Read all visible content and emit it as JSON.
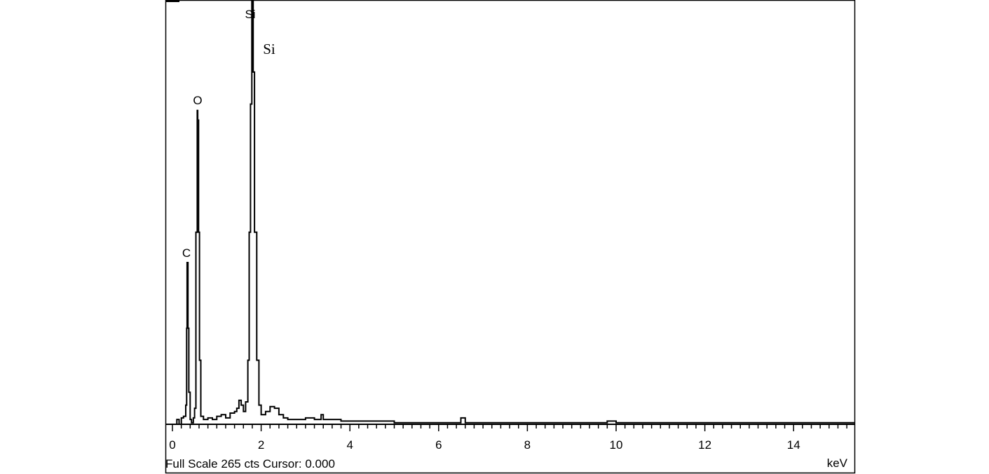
{
  "chart_data": {
    "type": "line",
    "xlabel": "keV",
    "xlim": [
      0,
      15.37
    ],
    "ylim": [
      0,
      265
    ],
    "x_ticks": [
      "0",
      "2",
      "4",
      "6",
      "8",
      "10",
      "12",
      "14"
    ],
    "grid": false,
    "status_text": "Full Scale 265 cts Cursor: 0.000",
    "series": [
      {
        "x": [
          0.05,
          0.1,
          0.15,
          0.2,
          0.25,
          0.3,
          0.32,
          0.33,
          0.35,
          0.37,
          0.4,
          0.43,
          0.47,
          0.5,
          0.53,
          0.56,
          0.57,
          0.59,
          0.61,
          0.64,
          0.7,
          0.8,
          0.9,
          1.0,
          1.1,
          1.2,
          1.3,
          1.4,
          1.45,
          1.5,
          1.55,
          1.6,
          1.65,
          1.7,
          1.73,
          1.76,
          1.79,
          1.8,
          1.82,
          1.85,
          1.9,
          1.95,
          2.0,
          2.1,
          2.2,
          2.3,
          2.4,
          2.5,
          2.6,
          2.8,
          3.0,
          3.2,
          3.35,
          3.4,
          3.6,
          3.8,
          4.0,
          4.5,
          5.0,
          5.5,
          6.0,
          6.3,
          6.5,
          6.6,
          7.0,
          7.5,
          8.0,
          8.5,
          9.0,
          9.5,
          9.8,
          10.0,
          10.5,
          11.0,
          11.5,
          12.0,
          12.5,
          13.0,
          13.5,
          14.0,
          14.5,
          15.0,
          15.37
        ],
        "y": [
          0,
          3,
          0,
          4,
          5,
          12,
          60,
          101,
          60,
          20,
          3,
          1,
          4,
          10,
          120,
          196,
          190,
          120,
          40,
          5,
          3,
          4,
          3,
          5,
          6,
          4,
          7,
          8,
          10,
          15,
          12,
          8,
          14,
          40,
          120,
          200,
          265,
          265,
          220,
          120,
          40,
          12,
          6,
          8,
          11,
          10,
          6,
          4,
          3,
          3,
          4,
          3,
          6,
          3,
          3,
          2,
          2,
          2,
          1,
          1,
          1,
          1,
          4,
          1,
          1,
          1,
          1,
          1,
          1,
          1,
          2,
          1,
          1,
          1,
          1,
          1,
          1,
          1,
          1,
          1,
          1,
          1,
          1
        ]
      }
    ],
    "annotations": [
      {
        "label": "C",
        "x": 0.33
      },
      {
        "label": "O",
        "x": 0.57
      },
      {
        "label": "Si",
        "x": 1.8
      },
      {
        "label": "Si",
        "x": 1.8,
        "style": "serif"
      }
    ]
  }
}
